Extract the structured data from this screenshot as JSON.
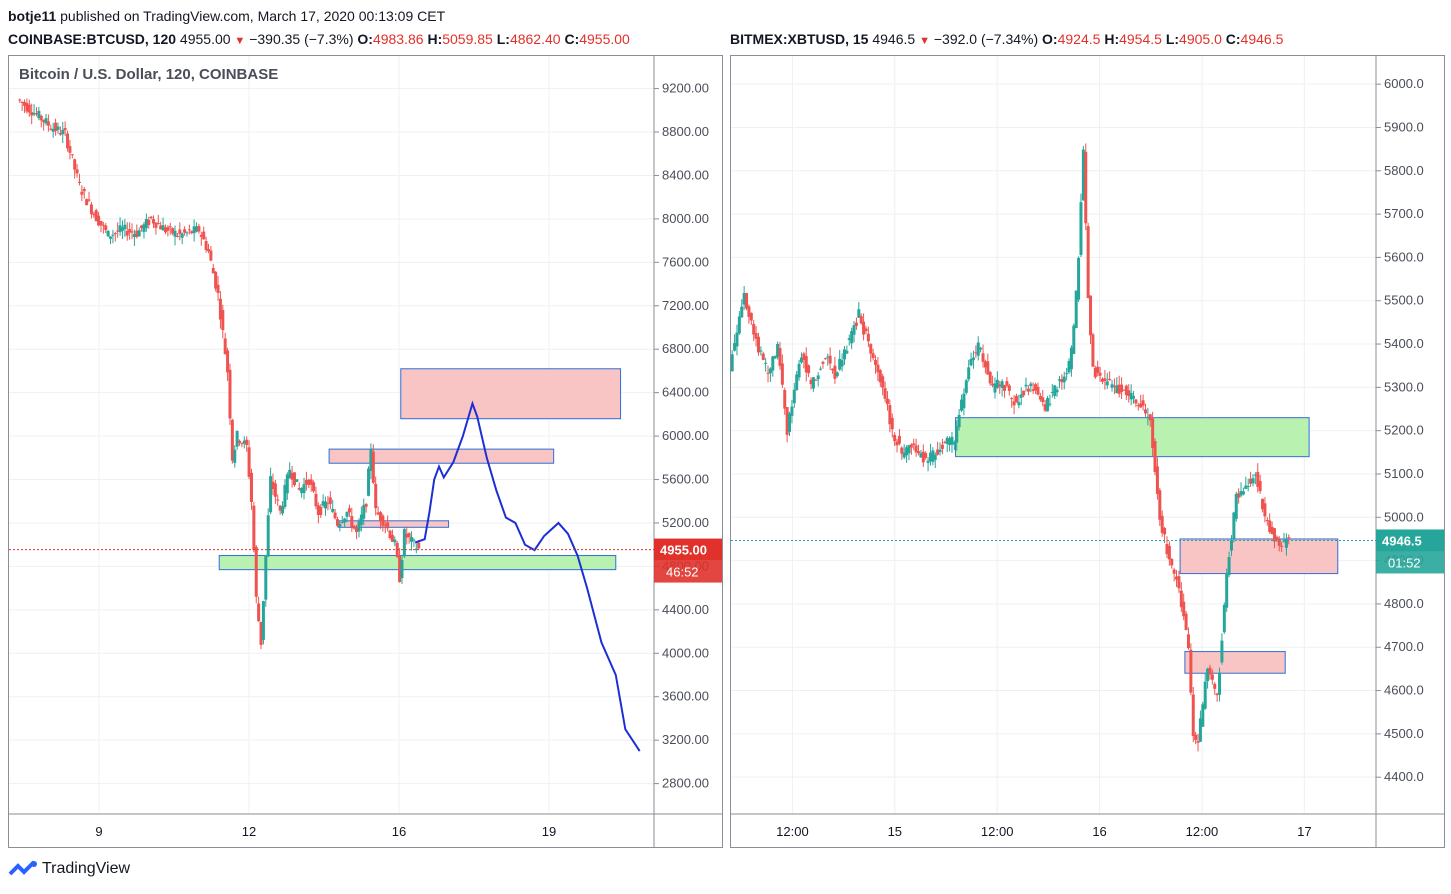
{
  "header": {
    "author": "botje11",
    "published_text": "published on TradingView.com, March 17, 2020 00:13:09 CET"
  },
  "left_symbol": {
    "ticker": "COINBASE:BTCUSD, 120",
    "last": "4955.00",
    "change": "−390.35 (−7.3%)",
    "o_label": "O:",
    "o": "4983.86",
    "h_label": "H:",
    "h": "5059.85",
    "l_label": "L:",
    "l": "4862.40",
    "c_label": "C:",
    "c": "4955.00"
  },
  "right_symbol": {
    "ticker": "BITMEX:XBTUSD, 15",
    "last": "4946.5",
    "change": "−392.0 (−7.34%)",
    "o_label": "O:",
    "o": "4924.5",
    "h_label": "H:",
    "h": "4954.5",
    "l_label": "L:",
    "l": "4905.0",
    "c_label": "C:",
    "c": "4946.5"
  },
  "footer": {
    "logo_text": "TradingView"
  },
  "colors": {
    "up": "#26a69a",
    "down": "#ef5350",
    "trend_line": "#1c2fd6",
    "zone_red": "#f8c4c4",
    "zone_green": "#b9f2b0",
    "channel_fill": "#e6fbfb",
    "grid": "#eef0f3",
    "price_label": "#e0312b",
    "right_price_label": "#26a69a"
  },
  "chart_data": [
    {
      "type": "candlestick",
      "title": "Bitcoin / U.S. Dollar, 120, COINBASE",
      "x_ticks": [
        "9",
        "12",
        "16",
        "19"
      ],
      "y_ticks": [
        "9200.00",
        "8800.00",
        "8400.00",
        "8000.00",
        "7600.00",
        "7200.00",
        "6800.00",
        "6400.00",
        "6000.00",
        "5600.00",
        "5200.00",
        "4800.00",
        "4400.00",
        "4000.00",
        "3600.00",
        "3200.00",
        "2800.00"
      ],
      "ylim": [
        2520,
        9500
      ],
      "last_price_label": "4955.00",
      "countdown_label": "46:52",
      "last_price": 4955,
      "path_points": [
        [
          2,
          9100
        ],
        [
          5,
          9000
        ],
        [
          9,
          8850
        ],
        [
          12,
          8780
        ],
        [
          15,
          8300
        ],
        [
          18,
          8050
        ],
        [
          21,
          7850
        ],
        [
          24,
          7900
        ],
        [
          27,
          7870
        ],
        [
          30,
          8000
        ],
        [
          33,
          7900
        ],
        [
          36,
          7850
        ],
        [
          40,
          7900
        ],
        [
          42,
          7700
        ],
        [
          44,
          7300
        ],
        [
          46,
          6600
        ],
        [
          47,
          5800
        ],
        [
          48,
          6000
        ],
        [
          50,
          5900
        ],
        [
          51,
          5400
        ],
        [
          52,
          4500
        ],
        [
          53,
          4100
        ],
        [
          54,
          4900
        ],
        [
          55,
          5600
        ],
        [
          57,
          5300
        ],
        [
          59,
          5700
        ],
        [
          61,
          5500
        ],
        [
          63,
          5600
        ],
        [
          65,
          5300
        ],
        [
          67,
          5400
        ],
        [
          69,
          5200
        ],
        [
          71,
          5300
        ],
        [
          73,
          5100
        ],
        [
          75,
          5400
        ],
        [
          76,
          5900
        ],
        [
          77,
          5300
        ],
        [
          79,
          5200
        ],
        [
          81,
          5000
        ],
        [
          82,
          4700
        ],
        [
          83,
          5100
        ],
        [
          85,
          5000
        ],
        [
          86,
          4960
        ]
      ],
      "x_range": [
        0,
        135
      ],
      "zones": [
        {
          "color": "red",
          "x0": 82,
          "x1": 128,
          "y0": 6160,
          "y1": 6620
        },
        {
          "color": "red",
          "x0": 67,
          "x1": 114,
          "y0": 5750,
          "y1": 5880
        },
        {
          "color": "red",
          "x0": 69,
          "x1": 92,
          "y0": 5160,
          "y1": 5220
        },
        {
          "color": "green",
          "x0": 44,
          "x1": 127,
          "y0": 4770,
          "y1": 4900
        }
      ],
      "projection": [
        [
          85,
          5020
        ],
        [
          87,
          5050
        ],
        [
          88,
          5300
        ],
        [
          89,
          5600
        ],
        [
          90,
          5720
        ],
        [
          91,
          5620
        ],
        [
          93,
          5760
        ],
        [
          95,
          6000
        ],
        [
          97,
          6300
        ],
        [
          98,
          6180
        ],
        [
          100,
          5800
        ],
        [
          102,
          5500
        ],
        [
          104,
          5250
        ],
        [
          106,
          5200
        ],
        [
          108,
          5000
        ],
        [
          110,
          4950
        ],
        [
          112,
          5080
        ],
        [
          115,
          5200
        ],
        [
          117,
          5100
        ],
        [
          119,
          4900
        ],
        [
          121,
          4600
        ],
        [
          124,
          4100
        ],
        [
          127,
          3800
        ],
        [
          129,
          3300
        ],
        [
          132,
          3100
        ]
      ]
    },
    {
      "type": "candlestick",
      "title": "BITMEX:XBTUSD, 15",
      "x_ticks": [
        "12:00",
        "15",
        "12:00",
        "16",
        "12:00",
        "17"
      ],
      "y_ticks": [
        "6000.0",
        "5900.0",
        "5800.0",
        "5700.0",
        "5600.0",
        "5500.0",
        "5400.0",
        "5300.0",
        "5200.0",
        "5100.0",
        "5000.0",
        "4900.0",
        "4800.0",
        "4700.0",
        "4600.0",
        "4500.0",
        "4400.0"
      ],
      "ylim": [
        4315,
        6065
      ],
      "last_price_label": "4946.5",
      "countdown_label": "01:52",
      "last_price": 4946.5,
      "path_points": [
        [
          0,
          5350
        ],
        [
          3,
          5520
        ],
        [
          5,
          5420
        ],
        [
          8,
          5330
        ],
        [
          10,
          5390
        ],
        [
          12,
          5200
        ],
        [
          15,
          5380
        ],
        [
          17,
          5300
        ],
        [
          20,
          5380
        ],
        [
          22,
          5330
        ],
        [
          25,
          5410
        ],
        [
          27,
          5470
        ],
        [
          29,
          5400
        ],
        [
          32,
          5300
        ],
        [
          34,
          5200
        ],
        [
          36,
          5150
        ],
        [
          38,
          5170
        ],
        [
          41,
          5130
        ],
        [
          43,
          5150
        ],
        [
          45,
          5170
        ],
        [
          47,
          5180
        ],
        [
          50,
          5340
        ],
        [
          52,
          5400
        ],
        [
          55,
          5300
        ],
        [
          57,
          5310
        ],
        [
          60,
          5260
        ],
        [
          62,
          5300
        ],
        [
          64,
          5300
        ],
        [
          66,
          5250
        ],
        [
          68,
          5300
        ],
        [
          70,
          5330
        ],
        [
          71,
          5350
        ],
        [
          72,
          5430
        ],
        [
          73,
          5600
        ],
        [
          74,
          5850
        ],
        [
          75,
          5500
        ],
        [
          76,
          5340
        ],
        [
          78,
          5320
        ],
        [
          80,
          5300
        ],
        [
          83,
          5290
        ],
        [
          86,
          5260
        ],
        [
          88,
          5220
        ],
        [
          90,
          5000
        ],
        [
          92,
          4900
        ],
        [
          94,
          4840
        ],
        [
          96,
          4700
        ],
        [
          97,
          4500
        ],
        [
          98,
          4480
        ],
        [
          100,
          4660
        ],
        [
          102,
          4580
        ],
        [
          104,
          4870
        ],
        [
          106,
          5050
        ],
        [
          108,
          5080
        ],
        [
          110,
          5100
        ],
        [
          112,
          5000
        ],
        [
          114,
          4950
        ],
        [
          115,
          4930
        ],
        [
          117,
          4946
        ]
      ],
      "x_range": [
        0,
        135
      ],
      "zones": [
        {
          "color": "green",
          "x0": 47,
          "x1": 121,
          "y0": 5140,
          "y1": 5230
        },
        {
          "color": "red",
          "x0": 94,
          "x1": 127,
          "y0": 4870,
          "y1": 4950
        },
        {
          "color": "red",
          "x0": 95,
          "x1": 116,
          "y0": 4640,
          "y1": 4690
        }
      ]
    }
  ]
}
